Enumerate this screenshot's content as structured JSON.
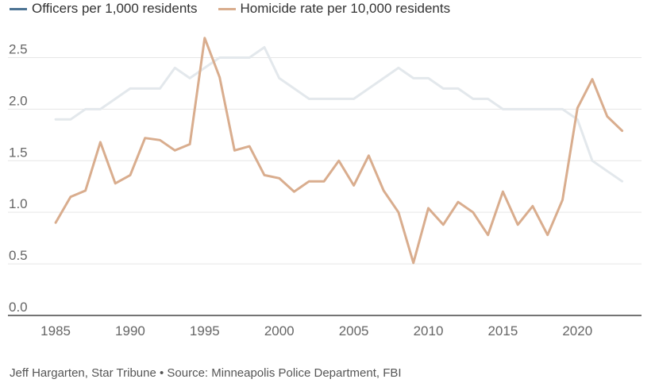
{
  "chart_data": {
    "type": "line",
    "x": [
      1985,
      1986,
      1987,
      1988,
      1989,
      1990,
      1991,
      1992,
      1993,
      1994,
      1995,
      1996,
      1997,
      1998,
      1999,
      2000,
      2001,
      2002,
      2003,
      2004,
      2005,
      2006,
      2007,
      2008,
      2009,
      2010,
      2011,
      2012,
      2013,
      2014,
      2015,
      2016,
      2017,
      2018,
      2019,
      2020,
      2021,
      2022,
      2023
    ],
    "series": [
      {
        "name": "Officers per 1,000 residents",
        "color": "#e3e8ec",
        "legend_color": "#4d7494",
        "values": [
          1.9,
          1.9,
          2.0,
          2.0,
          2.1,
          2.2,
          2.2,
          2.2,
          2.4,
          2.3,
          2.4,
          2.5,
          2.5,
          2.5,
          2.6,
          2.3,
          2.2,
          2.1,
          2.1,
          2.1,
          2.1,
          2.2,
          2.3,
          2.4,
          2.3,
          2.3,
          2.2,
          2.2,
          2.1,
          2.1,
          2.0,
          2.0,
          2.0,
          2.0,
          2.0,
          1.9,
          1.5,
          1.4,
          1.3
        ]
      },
      {
        "name": "Homicide rate per 10,000 residents",
        "color": "#d9ad8e",
        "legend_color": "#d9ad8e",
        "values": [
          0.9,
          1.15,
          1.21,
          1.68,
          1.28,
          1.36,
          1.72,
          1.7,
          1.6,
          1.66,
          2.69,
          2.31,
          1.6,
          1.64,
          1.36,
          1.33,
          1.2,
          1.3,
          1.3,
          1.5,
          1.26,
          1.55,
          1.21,
          1.0,
          0.51,
          1.04,
          0.88,
          1.1,
          1.0,
          0.78,
          1.2,
          0.88,
          1.06,
          0.78,
          1.12,
          2.01,
          2.29,
          1.93,
          1.79
        ]
      }
    ],
    "y_ticks": [
      "0.0",
      "0.5",
      "1.0",
      "1.5",
      "2.0",
      "2.5"
    ],
    "y_tick_values": [
      0,
      0.5,
      1.0,
      1.5,
      2.0,
      2.5
    ],
    "x_ticks": [
      1985,
      1990,
      1995,
      2000,
      2005,
      2010,
      2015,
      2020
    ],
    "ylim": [
      0,
      2.75
    ],
    "xlim": [
      1981.8,
      2024.3
    ],
    "title": "",
    "xlabel": "",
    "ylabel": "",
    "grid": true,
    "legend_position": "top-left"
  },
  "footer": {
    "credit": "Jeff Hargarten, Star Tribune • Source: Minneapolis Police Department, FBI"
  }
}
